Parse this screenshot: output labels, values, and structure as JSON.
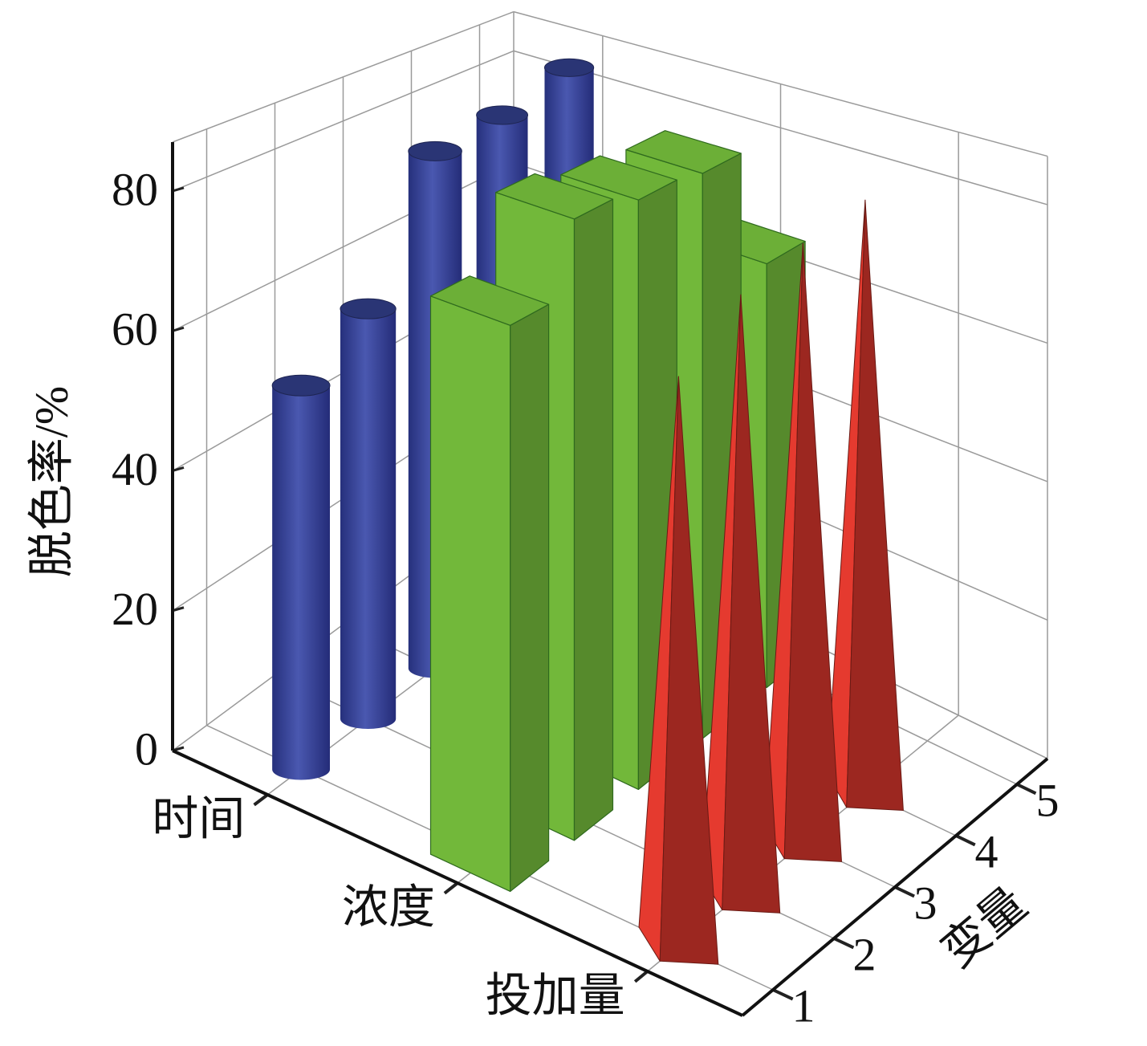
{
  "chart_data": {
    "type": "bar3d",
    "ylabel": "脱色率/%",
    "xlabel": "变量",
    "x": [
      1,
      2,
      3,
      4,
      5
    ],
    "xlim": [
      0.5,
      5.5
    ],
    "xticks": [
      1,
      2,
      3,
      4,
      5
    ],
    "zlim": [
      0,
      87
    ],
    "zticks": [
      0,
      20,
      40,
      60,
      80
    ],
    "grid": true,
    "series": [
      {
        "name": "时间",
        "shape": "cylinder",
        "color": "#3b49a3",
        "values": [
          55,
          61,
          80,
          81,
          84
        ]
      },
      {
        "name": "浓度",
        "shape": "box",
        "color": "#72b83a",
        "values": [
          77,
          87,
          85,
          84,
          65
        ]
      },
      {
        "name": "投加量",
        "shape": "cone",
        "color": "#e53a2f",
        "values": [
          76,
          82,
          84,
          85,
          null
        ]
      }
    ]
  }
}
